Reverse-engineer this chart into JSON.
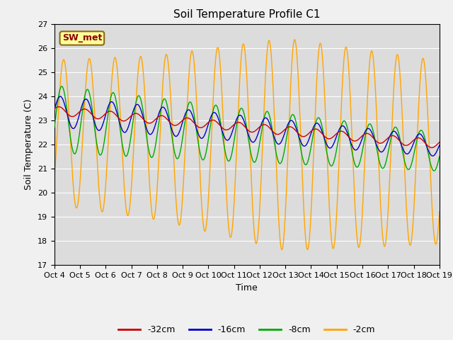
{
  "title": "Soil Temperature Profile C1",
  "xlabel": "Time",
  "ylabel": "Soil Temperature (C)",
  "ylim": [
    17.0,
    27.0
  ],
  "yticks": [
    17.0,
    18.0,
    19.0,
    20.0,
    21.0,
    22.0,
    23.0,
    24.0,
    25.0,
    26.0,
    27.0
  ],
  "xtick_labels": [
    "Oct 4",
    "Oct 5",
    "Oct 6",
    "Oct 7",
    "Oct 8",
    "Oct 9",
    "Oct 10",
    "Oct 11",
    "Oct 12",
    "Oct 13",
    "Oct 14",
    "Oct 15",
    "Oct 16",
    "Oct 17",
    "Oct 18",
    "Oct 19"
  ],
  "days": 15,
  "annotation_text": "SW_met",
  "annotation_color": "#8B0000",
  "annotation_bg": "#FFFF99",
  "colors": {
    "-32cm": "#CC0000",
    "-16cm": "#0000CC",
    "-8cm": "#00AA00",
    "-2cm": "#FFA500"
  },
  "bg_color": "#DCDCDC",
  "grid_color": "#FFFFFF",
  "title_fontsize": 11,
  "tick_fontsize": 8,
  "label_fontsize": 9
}
